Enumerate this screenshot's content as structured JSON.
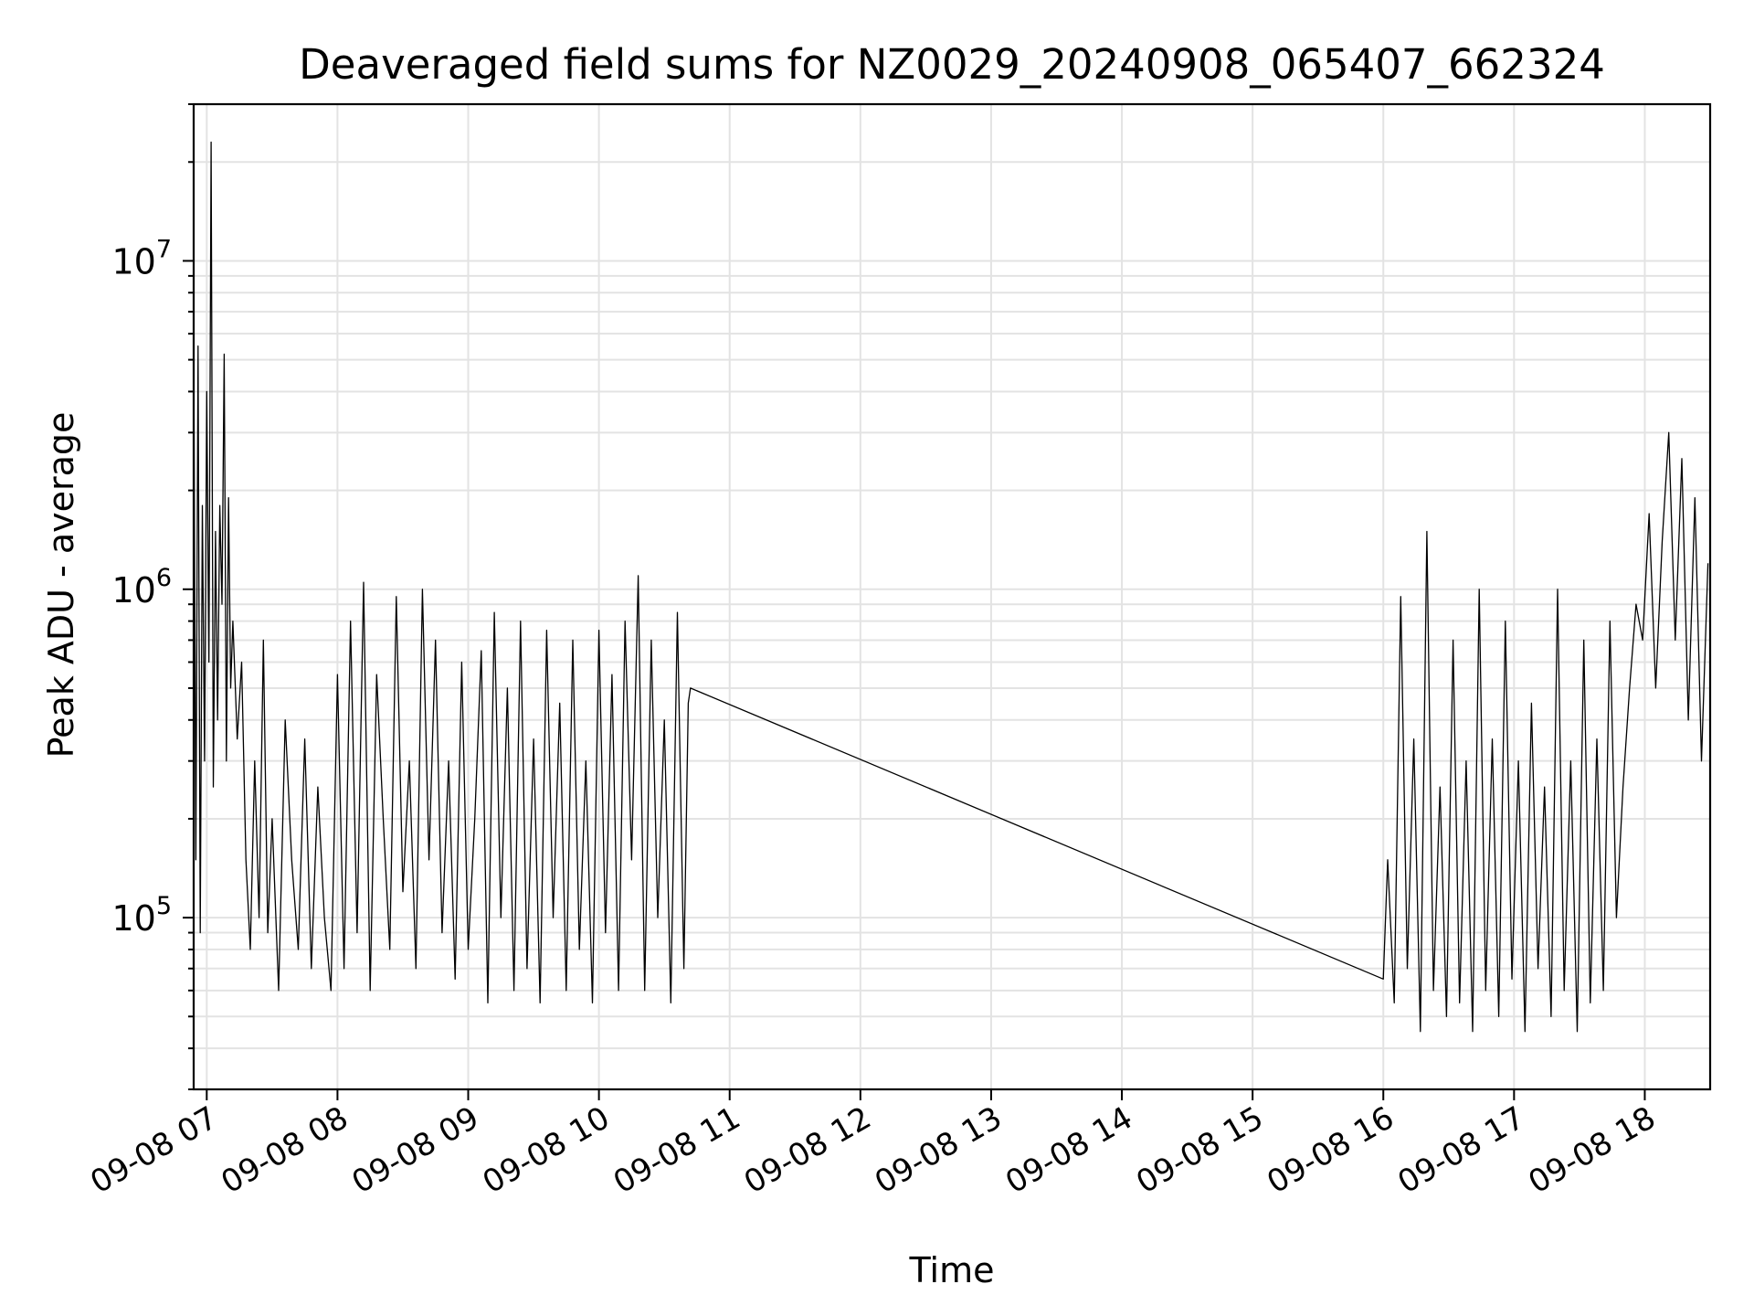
{
  "chart_data": {
    "type": "line",
    "title": "Deaveraged field sums for NZ0029_20240908_065407_662324",
    "xlabel": "Time",
    "ylabel": "Peak ADU - average",
    "yscale": "log",
    "grid": true,
    "grid_minor": true,
    "legend": "none",
    "line_color": "#000000",
    "xlim": [
      "2024-09-08 06:54",
      "2024-09-08 18:30"
    ],
    "ylim": [
      30000,
      30000000
    ],
    "x_ticks": [
      {
        "value": "2024-09-08 07:00",
        "label": "09-08 07"
      },
      {
        "value": "2024-09-08 08:00",
        "label": "09-08 08"
      },
      {
        "value": "2024-09-08 09:00",
        "label": "09-08 09"
      },
      {
        "value": "2024-09-08 10:00",
        "label": "09-08 10"
      },
      {
        "value": "2024-09-08 11:00",
        "label": "09-08 11"
      },
      {
        "value": "2024-09-08 12:00",
        "label": "09-08 12"
      },
      {
        "value": "2024-09-08 13:00",
        "label": "09-08 13"
      },
      {
        "value": "2024-09-08 14:00",
        "label": "09-08 14"
      },
      {
        "value": "2024-09-08 15:00",
        "label": "09-08 15"
      },
      {
        "value": "2024-09-08 16:00",
        "label": "09-08 16"
      },
      {
        "value": "2024-09-08 17:00",
        "label": "09-08 17"
      },
      {
        "value": "2024-09-08 18:00",
        "label": "09-08 18"
      }
    ],
    "y_ticks": [
      {
        "value": 100000,
        "base": "10",
        "exp": "5"
      },
      {
        "value": 1000000,
        "base": "10",
        "exp": "6"
      },
      {
        "value": 10000000,
        "base": "10",
        "exp": "7"
      }
    ],
    "series": [
      {
        "x": [
          "2024-09-08 06:54",
          "2024-09-08 06:55",
          "2024-09-08 06:56",
          "2024-09-08 06:57",
          "2024-09-08 06:58",
          "2024-09-08 06:59",
          "2024-09-08 07:00",
          "2024-09-08 07:01",
          "2024-09-08 07:02",
          "2024-09-08 07:03",
          "2024-09-08 07:04",
          "2024-09-08 07:05",
          "2024-09-08 07:06",
          "2024-09-08 07:07",
          "2024-09-08 07:08",
          "2024-09-08 07:09",
          "2024-09-08 07:10",
          "2024-09-08 07:11",
          "2024-09-08 07:12",
          "2024-09-08 07:14",
          "2024-09-08 07:16",
          "2024-09-08 07:18",
          "2024-09-08 07:20",
          "2024-09-08 07:22",
          "2024-09-08 07:24",
          "2024-09-08 07:26",
          "2024-09-08 07:28",
          "2024-09-08 07:30",
          "2024-09-08 07:33",
          "2024-09-08 07:36",
          "2024-09-08 07:39",
          "2024-09-08 07:42",
          "2024-09-08 07:45",
          "2024-09-08 07:48",
          "2024-09-08 07:51",
          "2024-09-08 07:54",
          "2024-09-08 07:57",
          "2024-09-08 08:00",
          "2024-09-08 08:03",
          "2024-09-08 08:06",
          "2024-09-08 08:09",
          "2024-09-08 08:12",
          "2024-09-08 08:15",
          "2024-09-08 08:18",
          "2024-09-08 08:21",
          "2024-09-08 08:24",
          "2024-09-08 08:27",
          "2024-09-08 08:30",
          "2024-09-08 08:33",
          "2024-09-08 08:36",
          "2024-09-08 08:39",
          "2024-09-08 08:42",
          "2024-09-08 08:45",
          "2024-09-08 08:48",
          "2024-09-08 08:51",
          "2024-09-08 08:54",
          "2024-09-08 08:57",
          "2024-09-08 09:00",
          "2024-09-08 09:03",
          "2024-09-08 09:06",
          "2024-09-08 09:09",
          "2024-09-08 09:12",
          "2024-09-08 09:15",
          "2024-09-08 09:18",
          "2024-09-08 09:21",
          "2024-09-08 09:24",
          "2024-09-08 09:27",
          "2024-09-08 09:30",
          "2024-09-08 09:33",
          "2024-09-08 09:36",
          "2024-09-08 09:39",
          "2024-09-08 09:42",
          "2024-09-08 09:45",
          "2024-09-08 09:48",
          "2024-09-08 09:51",
          "2024-09-08 09:54",
          "2024-09-08 09:57",
          "2024-09-08 10:00",
          "2024-09-08 10:03",
          "2024-09-08 10:06",
          "2024-09-08 10:09",
          "2024-09-08 10:12",
          "2024-09-08 10:15",
          "2024-09-08 10:18",
          "2024-09-08 10:21",
          "2024-09-08 10:24",
          "2024-09-08 10:27",
          "2024-09-08 10:30",
          "2024-09-08 10:33",
          "2024-09-08 10:36",
          "2024-09-08 10:39",
          "2024-09-08 10:41",
          "2024-09-08 10:42",
          "2024-09-08 16:00",
          "2024-09-08 16:02",
          "2024-09-08 16:05",
          "2024-09-08 16:08",
          "2024-09-08 16:11",
          "2024-09-08 16:14",
          "2024-09-08 16:17",
          "2024-09-08 16:20",
          "2024-09-08 16:23",
          "2024-09-08 16:26",
          "2024-09-08 16:29",
          "2024-09-08 16:32",
          "2024-09-08 16:35",
          "2024-09-08 16:38",
          "2024-09-08 16:41",
          "2024-09-08 16:44",
          "2024-09-08 16:47",
          "2024-09-08 16:50",
          "2024-09-08 16:53",
          "2024-09-08 16:56",
          "2024-09-08 16:59",
          "2024-09-08 17:02",
          "2024-09-08 17:05",
          "2024-09-08 17:08",
          "2024-09-08 17:11",
          "2024-09-08 17:14",
          "2024-09-08 17:17",
          "2024-09-08 17:20",
          "2024-09-08 17:23",
          "2024-09-08 17:26",
          "2024-09-08 17:29",
          "2024-09-08 17:32",
          "2024-09-08 17:35",
          "2024-09-08 17:38",
          "2024-09-08 17:41",
          "2024-09-08 17:44",
          "2024-09-08 17:47",
          "2024-09-08 17:50",
          "2024-09-08 17:53",
          "2024-09-08 17:56",
          "2024-09-08 17:59",
          "2024-09-08 18:02",
          "2024-09-08 18:05",
          "2024-09-08 18:08",
          "2024-09-08 18:11",
          "2024-09-08 18:14",
          "2024-09-08 18:17",
          "2024-09-08 18:20",
          "2024-09-08 18:23",
          "2024-09-08 18:26",
          "2024-09-08 18:29"
        ],
        "y": [
          6000000,
          150000,
          5500000,
          90000,
          1800000,
          300000,
          4000000,
          600000,
          23000000,
          250000,
          1500000,
          400000,
          1800000,
          900000,
          5200000,
          300000,
          1900000,
          500000,
          800000,
          350000,
          600000,
          150000,
          80000,
          300000,
          100000,
          700000,
          90000,
          200000,
          60000,
          400000,
          150000,
          80000,
          350000,
          70000,
          250000,
          100000,
          60000,
          550000,
          70000,
          800000,
          90000,
          1050000,
          60000,
          550000,
          200000,
          80000,
          950000,
          120000,
          300000,
          70000,
          1000000,
          150000,
          700000,
          90000,
          300000,
          65000,
          600000,
          80000,
          200000,
          650000,
          55000,
          850000,
          100000,
          500000,
          60000,
          800000,
          70000,
          350000,
          55000,
          750000,
          100000,
          450000,
          60000,
          700000,
          80000,
          300000,
          55000,
          750000,
          90000,
          550000,
          60000,
          800000,
          150000,
          1100000,
          60000,
          700000,
          100000,
          400000,
          55000,
          850000,
          70000,
          450000,
          500000,
          65000,
          150000,
          55000,
          950000,
          70000,
          350000,
          45000,
          1500000,
          60000,
          250000,
          50000,
          700000,
          55000,
          300000,
          45000,
          1000000,
          60000,
          350000,
          50000,
          800000,
          65000,
          300000,
          45000,
          450000,
          70000,
          250000,
          50000,
          1000000,
          60000,
          300000,
          45000,
          700000,
          55000,
          350000,
          60000,
          800000,
          100000,
          250000,
          500000,
          900000,
          700000,
          1700000,
          500000,
          1400000,
          3000000,
          700000,
          2500000,
          400000,
          1900000,
          300000,
          1200000
        ]
      }
    ]
  }
}
